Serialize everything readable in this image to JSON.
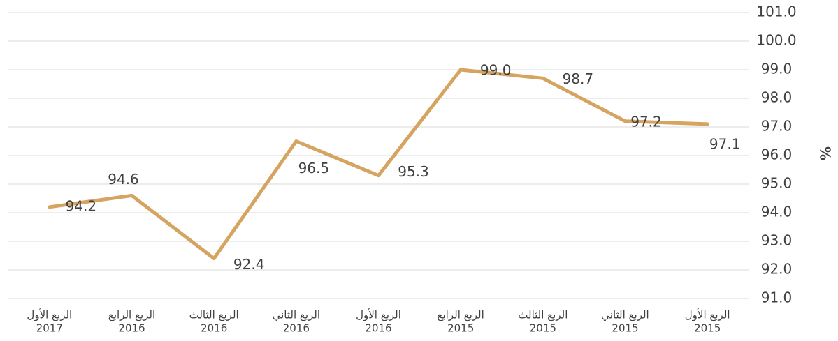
{
  "chart_data": {
    "type": "line",
    "y_label": "%",
    "categories": [
      [
        "الربع الأول",
        "2017"
      ],
      [
        "الربع الرابع",
        "2016"
      ],
      [
        "الربع الثالث",
        "2016"
      ],
      [
        "الربع الثاني",
        "2016"
      ],
      [
        "الربع الأول",
        "2016"
      ],
      [
        "الربع الرابع",
        "2015"
      ],
      [
        "الربع الثالث",
        "2015"
      ],
      [
        "الربع الثاني",
        "2015"
      ],
      [
        "الربع الأول",
        "2015"
      ]
    ],
    "values": [
      94.2,
      94.6,
      92.4,
      96.5,
      95.3,
      99.0,
      98.7,
      97.2,
      97.1
    ],
    "value_labels": [
      "94.2",
      "94.6",
      "92.4",
      "96.5",
      "95.3",
      "99.0",
      "98.7",
      "97.2",
      "97.1"
    ],
    "color": "#d6a461",
    "ylim": [
      91,
      101
    ],
    "yticks": [
      {
        "value": 91,
        "label": "91.0"
      },
      {
        "value": 92,
        "label": "92.0"
      },
      {
        "value": 93,
        "label": "93.0"
      },
      {
        "value": 94,
        "label": "94.0"
      },
      {
        "value": 95,
        "label": "95.0"
      },
      {
        "value": 96,
        "label": "96.0"
      },
      {
        "value": 97,
        "label": "97.0"
      },
      {
        "value": 98,
        "label": "98.0"
      },
      {
        "value": 99,
        "label": "99.0"
      },
      {
        "value": 100,
        "label": "100.0"
      },
      {
        "value": 101,
        "label": "101.0"
      }
    ],
    "grid": true,
    "y_axis_side": "right"
  }
}
